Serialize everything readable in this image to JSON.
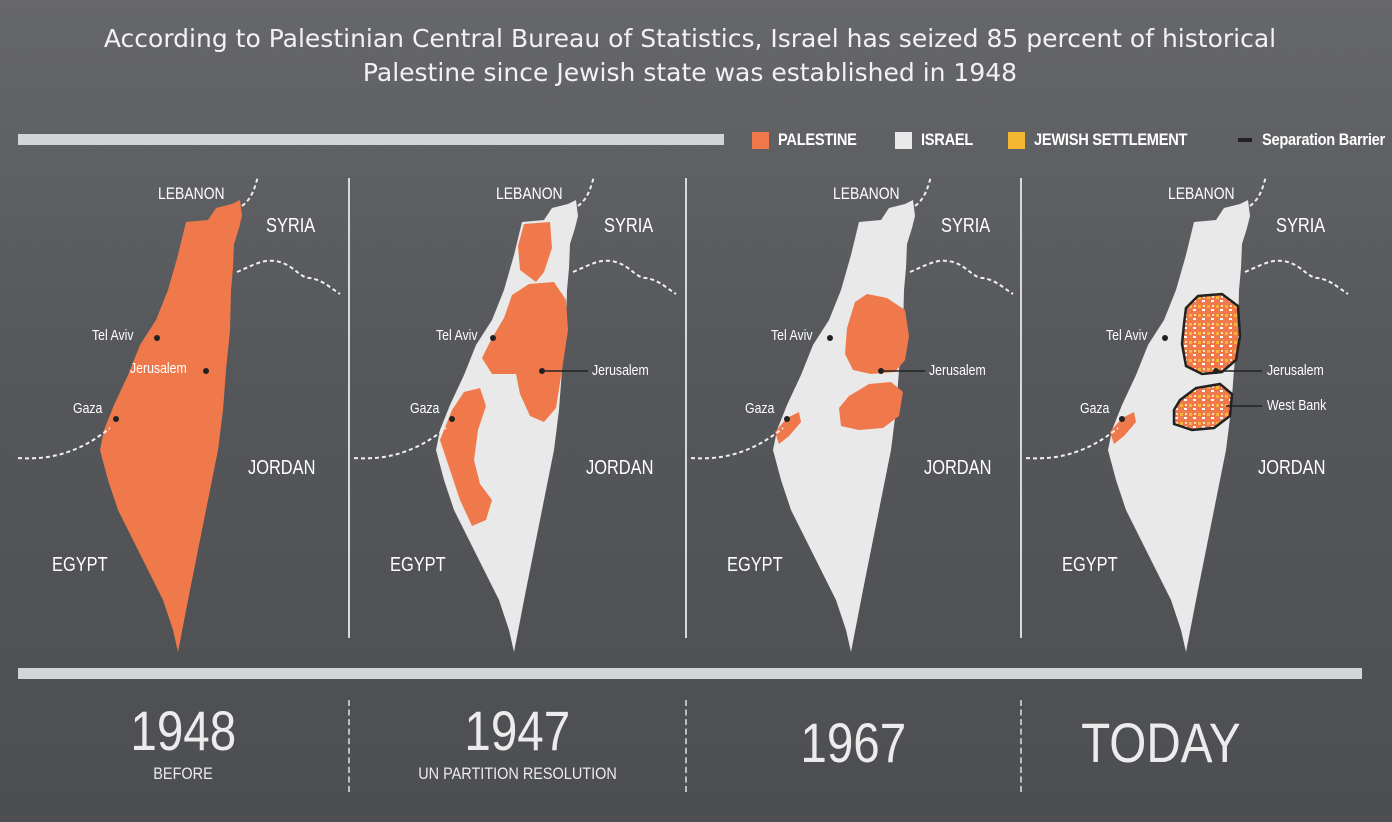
{
  "title": {
    "line1": "According to Palestinian Central Bureau of Statistics, Israel has seized 85 percent of historical",
    "line2": "Palestine since Jewish state was established in 1948"
  },
  "legend": [
    {
      "label": "PALESTINE",
      "color": "#f0794b"
    },
    {
      "label": "ISRAEL",
      "color": "#e9e9e9"
    },
    {
      "label": "JEWISH SETTLEMENT",
      "color": "#f5b731"
    },
    {
      "label": "Separation Barrier",
      "color": "#222222"
    }
  ],
  "colors": {
    "palestine": "#f0794b",
    "israel": "#e9e9e9",
    "settlement": "#f5b731",
    "barrier": "#222222"
  },
  "panels": [
    {
      "labels": {
        "lebanon": "LEBANON",
        "syria": "SYRIA",
        "jordan": "JORDAN",
        "egypt": "EGYPT",
        "tel_aviv": "Tel Aviv",
        "jerusalem": "Jerusalem",
        "gaza": "Gaza"
      },
      "year": "1948",
      "caption": "BEFORE"
    },
    {
      "labels": {
        "lebanon": "LEBANON",
        "syria": "SYRIA",
        "jordan": "JORDAN",
        "egypt": "EGYPT",
        "tel_aviv": "Tel Aviv",
        "jerusalem": "Jerusalem",
        "gaza": "Gaza"
      },
      "year": "1947",
      "caption": "UN PARTITION RESOLUTION"
    },
    {
      "labels": {
        "lebanon": "LEBANON",
        "syria": "SYRIA",
        "jordan": "JORDAN",
        "egypt": "EGYPT",
        "tel_aviv": "Tel Aviv",
        "jerusalem": "Jerusalem",
        "gaza": "Gaza"
      },
      "year": "1967",
      "caption": ""
    },
    {
      "labels": {
        "lebanon": "LEBANON",
        "syria": "SYRIA",
        "jordan": "JORDAN",
        "egypt": "EGYPT",
        "tel_aviv": "Tel Aviv",
        "jerusalem": "Jerusalem",
        "gaza": "Gaza",
        "west_bank": "West Bank"
      },
      "year": "TODAY",
      "caption": ""
    }
  ]
}
